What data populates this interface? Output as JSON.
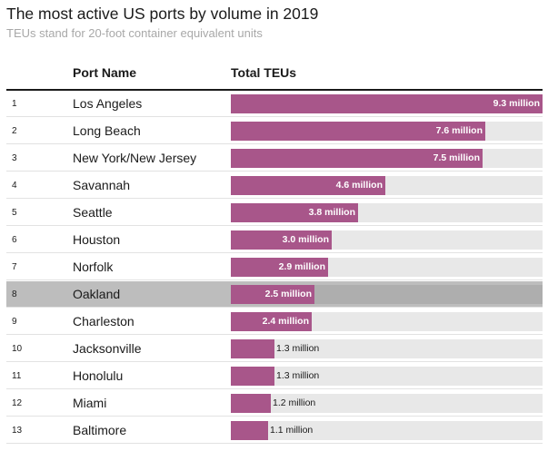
{
  "title": "The most active US ports by volume in 2019",
  "subtitle": "TEUs stand for 20-foot container equivalent units",
  "headers": {
    "port": "Port Name",
    "teus": "Total TEUs"
  },
  "colors": {
    "bar": "#a8568a",
    "track": "#e8e8e8",
    "highlight": "#bdbdbd"
  },
  "highlighted_port": "Oakland",
  "chart_data": {
    "type": "bar",
    "orientation": "horizontal",
    "title": "The most active US ports by volume in 2019",
    "subtitle": "TEUs stand for 20-foot container equivalent units",
    "xlabel": "Total TEUs",
    "unit": "million",
    "xlim": [
      0,
      9.3
    ],
    "rows": [
      {
        "rank": "1",
        "port": "Los Angeles",
        "value": 9.3,
        "label": "9.3 million"
      },
      {
        "rank": "2",
        "port": "Long Beach",
        "value": 7.6,
        "label": "7.6 million"
      },
      {
        "rank": "3",
        "port": "New York/New Jersey",
        "value": 7.5,
        "label": "7.5 million"
      },
      {
        "rank": "4",
        "port": "Savannah",
        "value": 4.6,
        "label": "4.6 million"
      },
      {
        "rank": "5",
        "port": "Seattle",
        "value": 3.8,
        "label": "3.8 million"
      },
      {
        "rank": "6",
        "port": "Houston",
        "value": 3.0,
        "label": "3.0 million"
      },
      {
        "rank": "7",
        "port": "Norfolk",
        "value": 2.9,
        "label": "2.9 million"
      },
      {
        "rank": "8",
        "port": "Oakland",
        "value": 2.5,
        "label": "2.5 million"
      },
      {
        "rank": "9",
        "port": "Charleston",
        "value": 2.4,
        "label": "2.4 million"
      },
      {
        "rank": "10",
        "port": "Jacksonville",
        "value": 1.3,
        "label": "1.3 million"
      },
      {
        "rank": "11",
        "port": "Honolulu",
        "value": 1.3,
        "label": "1.3 million"
      },
      {
        "rank": "12",
        "port": "Miami",
        "value": 1.2,
        "label": "1.2 million"
      },
      {
        "rank": "13",
        "port": "Baltimore",
        "value": 1.1,
        "label": "1.1 million"
      }
    ]
  }
}
